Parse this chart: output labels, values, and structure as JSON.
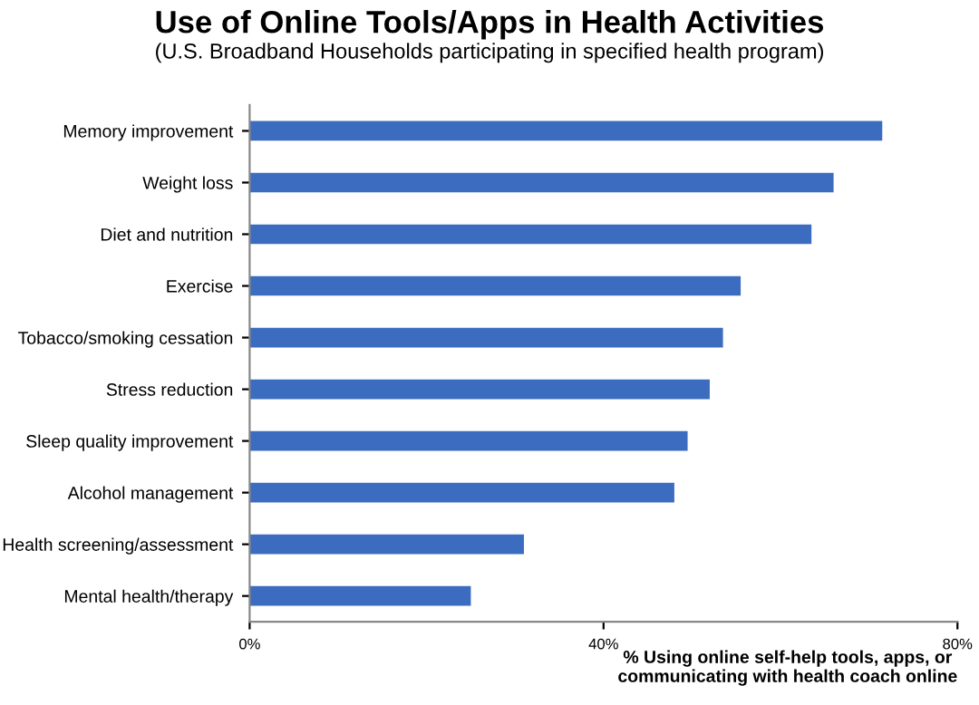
{
  "chart_data": {
    "type": "bar",
    "orientation": "horizontal",
    "title": "Use of Online Tools/Apps in Health Activities",
    "subtitle": "(U.S. Broadband Households participating in specified health program)",
    "xlabel": "% Using online self-help tools, apps, or\ncommunicating with health coach online",
    "categories": [
      "Memory improvement",
      "Weight loss",
      "Diet and nutrition",
      "Exercise",
      "Tobacco/smoking cessation",
      "Stress reduction",
      "Sleep quality improvement",
      "Alcohol management",
      "Health screening/assessment",
      "Mental health/therapy"
    ],
    "values": [
      71.5,
      66,
      63.5,
      55.5,
      53.5,
      52,
      49.5,
      48,
      31,
      25
    ],
    "color": "#3c6cc0",
    "xlim": [
      0,
      80
    ],
    "xticks": [
      {
        "value": 0,
        "label": "0%"
      },
      {
        "value": 40,
        "label": "40%"
      },
      {
        "value": 80,
        "label": "80%"
      }
    ],
    "grid": false,
    "legend": false
  }
}
